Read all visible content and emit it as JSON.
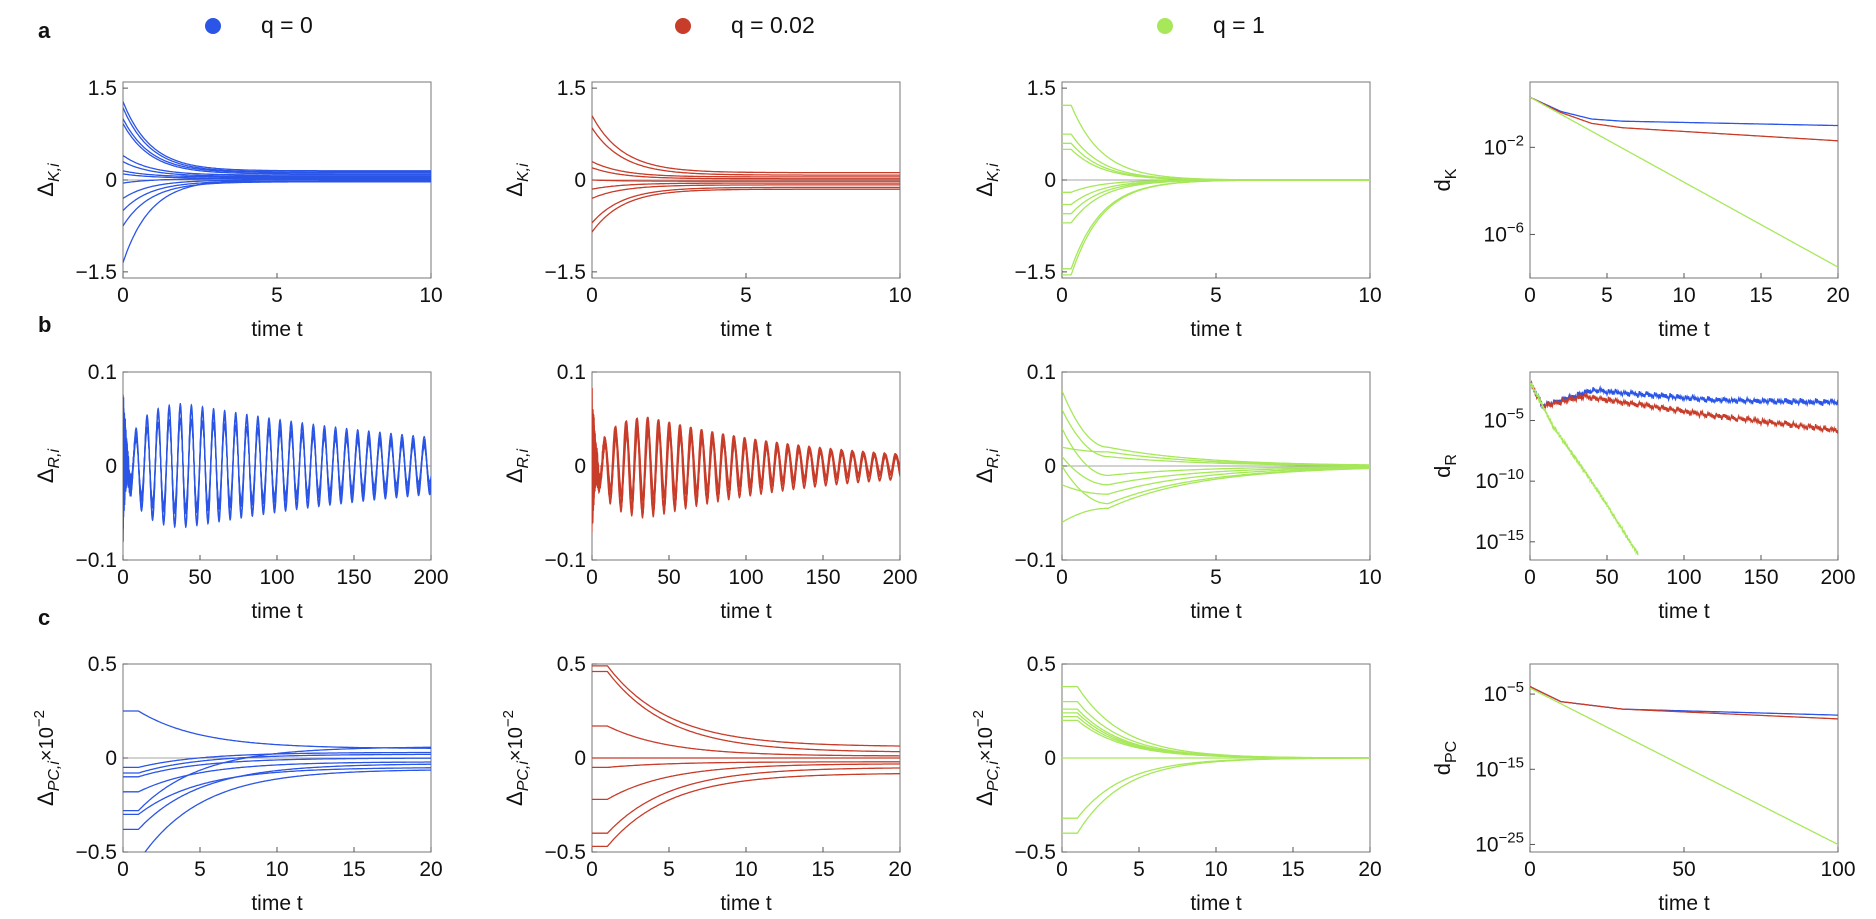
{
  "legend": [
    {
      "label": "q = 0",
      "color": "#2b55e6"
    },
    {
      "label": "q = 0.02",
      "color": "#c83c2a"
    },
    {
      "label": "q = 1",
      "color": "#a6e85a"
    }
  ],
  "row_labels": [
    "a",
    "b",
    "c"
  ],
  "chart_data": [
    {
      "id": "a1",
      "type": "line",
      "xlabel": "time t",
      "ylabel": "Δ",
      "ysub": "K,i",
      "xlim": [
        0,
        10
      ],
      "ylim": [
        -1.6,
        1.6
      ],
      "xticks": [
        0,
        5,
        10
      ],
      "yticks": [
        {
          "v": 1.5,
          "t": "1.5"
        },
        {
          "v": 0,
          "t": "0"
        },
        {
          "v": -1.5,
          "t": "−1.5"
        }
      ],
      "color": "#2b55e6",
      "series": [
        {
          "name": "q = 0",
          "mode": "exp",
          "initial": [
            1.28,
            1.18,
            1.0,
            0.92,
            0.4,
            0.3,
            0.15,
            0.1,
            -0.05,
            -0.3,
            -0.5,
            -0.75,
            -1.35
          ],
          "final": [
            0.15,
            0.13,
            0.12,
            0.1,
            0.08,
            0.06,
            0.05,
            0.03,
            0.02,
            0.0,
            -0.02,
            -0.03,
            0.01
          ],
          "tau": 0.9,
          "delay": 0
        }
      ]
    },
    {
      "id": "a2",
      "type": "line",
      "xlabel": "time t",
      "ylabel": "Δ",
      "ysub": "K,i",
      "xlim": [
        0,
        10
      ],
      "ylim": [
        -1.6,
        1.6
      ],
      "xticks": [
        0,
        5,
        10
      ],
      "yticks": [
        {
          "v": 1.5,
          "t": "1.5"
        },
        {
          "v": 0,
          "t": "0"
        },
        {
          "v": -1.5,
          "t": "−1.5"
        }
      ],
      "color": "#c83c2a",
      "series": [
        {
          "name": "q = 0.02",
          "mode": "exp",
          "initial": [
            1.05,
            0.85,
            0.3,
            0.2,
            0.0,
            -0.15,
            -0.3,
            -0.7,
            -0.85
          ],
          "final": [
            0.12,
            0.08,
            0.05,
            0.02,
            -0.02,
            -0.05,
            -0.08,
            -0.12,
            -0.15
          ],
          "tau": 1.0,
          "delay": 0
        }
      ]
    },
    {
      "id": "a3",
      "type": "line",
      "xlabel": "time t",
      "ylabel": "Δ",
      "ysub": "K,i",
      "xlim": [
        0,
        10
      ],
      "ylim": [
        -1.6,
        1.6
      ],
      "xticks": [
        0,
        5,
        10
      ],
      "yticks": [
        {
          "v": 1.5,
          "t": "1.5"
        },
        {
          "v": 0,
          "t": "0"
        },
        {
          "v": -1.5,
          "t": "−1.5"
        }
      ],
      "color": "#a6e85a",
      "series": [
        {
          "name": "q = 1",
          "mode": "exp",
          "initial": [
            1.22,
            0.75,
            0.6,
            0.5,
            -0.4,
            -0.55,
            -0.7,
            -1.45,
            -1.55,
            -0.2
          ],
          "final": [
            0,
            0,
            0,
            0,
            0,
            0,
            0,
            0,
            0,
            0
          ],
          "tau": 1.0,
          "delay": 0.3
        }
      ]
    },
    {
      "id": "a4",
      "type": "line",
      "log": true,
      "xlabel": "time t",
      "ylabel": "d",
      "ysub": "K",
      "xlim": [
        0,
        20
      ],
      "ylim": [
        -8,
        1
      ],
      "xticks": [
        0,
        5,
        10,
        15,
        20
      ],
      "yticks": [
        {
          "v": -2,
          "t": "10",
          "sup": "−2"
        },
        {
          "v": -6,
          "t": "10",
          "sup": "−6"
        }
      ],
      "series": [
        {
          "name": "q = 0",
          "color": "#2b55e6",
          "points": [
            [
              0,
              0.3
            ],
            [
              2,
              -0.35
            ],
            [
              4,
              -0.7
            ],
            [
              6,
              -0.8
            ],
            [
              20,
              -1.0
            ]
          ]
        },
        {
          "name": "q = 0.02",
          "color": "#c83c2a",
          "points": [
            [
              0,
              0.3
            ],
            [
              2,
              -0.4
            ],
            [
              4,
              -0.9
            ],
            [
              6,
              -1.1
            ],
            [
              20,
              -1.7
            ]
          ]
        },
        {
          "name": "q = 1",
          "color": "#a6e85a",
          "points": [
            [
              0,
              0.3
            ],
            [
              20,
              -7.5
            ]
          ]
        }
      ]
    },
    {
      "id": "b1",
      "type": "line",
      "xlabel": "time t",
      "ylabel": "Δ",
      "ysub": "R,i",
      "xlim": [
        0,
        200
      ],
      "ylim": [
        -0.1,
        0.1
      ],
      "xticks": [
        0,
        50,
        100,
        150,
        200
      ],
      "yticks": [
        {
          "v": 0.1,
          "t": "0.1"
        },
        {
          "v": 0,
          "t": "0"
        },
        {
          "v": -0.1,
          "t": "−0.1"
        }
      ],
      "color": "#2b55e6",
      "series": [
        {
          "name": "q = 0",
          "mode": "osc",
          "amp": 0.062,
          "period": 7.2,
          "peak": 38,
          "decay": 190,
          "rise": 10,
          "count": 8,
          "spread": 0.008
        }
      ]
    },
    {
      "id": "b2",
      "type": "line",
      "xlabel": "time t",
      "ylabel": "Δ",
      "ysub": "R,i",
      "xlim": [
        0,
        200
      ],
      "ylim": [
        -0.1,
        0.1
      ],
      "xticks": [
        0,
        50,
        100,
        150,
        200
      ],
      "yticks": [
        {
          "v": 0.1,
          "t": "0.1"
        },
        {
          "v": 0,
          "t": "0"
        },
        {
          "v": -0.1,
          "t": "−0.1"
        }
      ],
      "color": "#c83c2a",
      "series": [
        {
          "name": "q = 0.02",
          "mode": "osc",
          "amp": 0.045,
          "period": 7.0,
          "peak": 35,
          "decay": 110,
          "rise": 10,
          "count": 8,
          "spread": 0.006
        }
      ]
    },
    {
      "id": "b3",
      "type": "line",
      "xlabel": "time t",
      "ylabel": "Δ",
      "ysub": "R,i",
      "xlim": [
        0,
        10
      ],
      "ylim": [
        -0.1,
        0.1
      ],
      "xticks": [
        0,
        5,
        10
      ],
      "yticks": [
        {
          "v": 0.1,
          "t": "0.1"
        },
        {
          "v": 0,
          "t": "0"
        },
        {
          "v": -0.1,
          "t": "−0.1"
        }
      ],
      "color": "#a6e85a",
      "series": [
        {
          "name": "q = 1",
          "mode": "hump",
          "initial": [
            0.08,
            0.06,
            0.04,
            -0.06,
            0.0,
            0.02,
            -0.02,
            0.01
          ],
          "mid": [
            0.02,
            0.01,
            -0.01,
            -0.045,
            -0.04,
            0.015,
            -0.03,
            -0.02
          ],
          "tpeak": 1.5,
          "tau": 3.0
        }
      ]
    },
    {
      "id": "b4",
      "type": "line",
      "log": true,
      "xlabel": "time t",
      "ylabel": "d",
      "ysub": "R",
      "xlim": [
        0,
        200
      ],
      "ylim": [
        -16.5,
        -1
      ],
      "xticks": [
        0,
        50,
        100,
        150,
        200
      ],
      "yticks": [
        {
          "v": -5,
          "t": "10",
          "sup": "−5"
        },
        {
          "v": -10,
          "t": "10",
          "sup": "−10"
        },
        {
          "v": -15,
          "t": "10",
          "sup": "−15"
        }
      ],
      "series": [
        {
          "name": "q = 0",
          "color": "#2b55e6",
          "points": [
            [
              0,
              -1.8
            ],
            [
              8,
              -3.8
            ],
            [
              40,
              -2.5
            ],
            [
              120,
              -3.3
            ],
            [
              200,
              -3.5
            ]
          ],
          "ripple": 0.5
        },
        {
          "name": "q = 0.02",
          "color": "#c83c2a",
          "points": [
            [
              0,
              -1.8
            ],
            [
              8,
              -3.8
            ],
            [
              35,
              -3.0
            ],
            [
              120,
              -4.6
            ],
            [
              200,
              -5.8
            ]
          ],
          "ripple": 0.5
        },
        {
          "name": "q = 1",
          "color": "#a6e85a",
          "points": [
            [
              0,
              -1.8
            ],
            [
              15,
              -5.5
            ],
            [
              40,
              -10
            ],
            [
              70,
              -16.0
            ]
          ],
          "ripple": 0.25
        }
      ]
    },
    {
      "id": "c1",
      "type": "line",
      "xlabel": "time t",
      "ylabel": "Δ",
      "ysub": "PC,i",
      "ysuffix": "×10",
      "ysup": "−2",
      "xlim": [
        0,
        20
      ],
      "ylim": [
        -0.5,
        0.5
      ],
      "xticks": [
        0,
        5,
        10,
        15,
        20
      ],
      "yticks": [
        {
          "v": 0.5,
          "t": "0.5"
        },
        {
          "v": 0,
          "t": "0"
        },
        {
          "v": -0.5,
          "t": "−0.5"
        }
      ],
      "color": "#2b55e6",
      "series": [
        {
          "name": "q = 0",
          "mode": "exp",
          "initial": [
            0.25,
            -0.05,
            -0.08,
            -0.1,
            -0.18,
            -0.28,
            -0.3,
            -0.38,
            -0.55
          ],
          "final": [
            0.05,
            0.03,
            0.02,
            0.0,
            -0.02,
            0.06,
            -0.05,
            -0.03,
            -0.06
          ],
          "tau": 4.0,
          "delay": 1.0
        }
      ]
    },
    {
      "id": "c2",
      "type": "line",
      "xlabel": "time t",
      "ylabel": "Δ",
      "ysub": "PC,i",
      "ysuffix": "×10",
      "ysup": "−2",
      "xlim": [
        0,
        20
      ],
      "ylim": [
        -0.5,
        0.5
      ],
      "xticks": [
        0,
        5,
        10,
        15,
        20
      ],
      "yticks": [
        {
          "v": 0.5,
          "t": "0.5"
        },
        {
          "v": 0,
          "t": "0"
        },
        {
          "v": -0.5,
          "t": "−0.5"
        }
      ],
      "color": "#c83c2a",
      "series": [
        {
          "name": "q = 0.02",
          "mode": "exp",
          "initial": [
            0.49,
            0.46,
            0.17,
            0.0,
            -0.05,
            -0.22,
            -0.4,
            -0.47
          ],
          "final": [
            0.06,
            0.03,
            0.01,
            0.0,
            -0.02,
            -0.03,
            -0.05,
            -0.08
          ],
          "tau": 4.0,
          "delay": 1.0
        }
      ]
    },
    {
      "id": "c3",
      "type": "line",
      "xlabel": "time t",
      "ylabel": "Δ",
      "ysub": "PC,i",
      "ysuffix": "×10",
      "ysup": "−2",
      "xlim": [
        0,
        20
      ],
      "ylim": [
        -0.5,
        0.5
      ],
      "xticks": [
        0,
        5,
        10,
        15,
        20
      ],
      "yticks": [
        {
          "v": 0.5,
          "t": "0.5"
        },
        {
          "v": 0,
          "t": "0"
        },
        {
          "v": -0.5,
          "t": "−0.5"
        }
      ],
      "color": "#a6e85a",
      "series": [
        {
          "name": "q = 1",
          "mode": "exp",
          "initial": [
            0.38,
            0.3,
            0.26,
            0.24,
            0.22,
            0.2,
            0.0,
            -0.32,
            -0.4
          ],
          "final": [
            0,
            0,
            0,
            0,
            0,
            0,
            0,
            0,
            0
          ],
          "tau": 3.0,
          "delay": 1.0
        }
      ]
    },
    {
      "id": "c4",
      "type": "line",
      "log": true,
      "xlabel": "time t",
      "ylabel": "d",
      "ysub": "PC",
      "xlim": [
        0,
        100
      ],
      "ylim": [
        -26,
        -1
      ],
      "xticks": [
        0,
        50,
        100
      ],
      "yticks": [
        {
          "v": -5,
          "t": "10",
          "sup": "−5"
        },
        {
          "v": -15,
          "t": "10",
          "sup": "−15"
        },
        {
          "v": -25,
          "t": "10",
          "sup": "−25"
        }
      ],
      "series": [
        {
          "name": "q = 0",
          "color": "#2b55e6",
          "points": [
            [
              0,
              -4.0
            ],
            [
              10,
              -6.0
            ],
            [
              30,
              -7.0
            ],
            [
              100,
              -7.8
            ]
          ]
        },
        {
          "name": "q = 0.02",
          "color": "#c83c2a",
          "points": [
            [
              0,
              -4.0
            ],
            [
              10,
              -6.0
            ],
            [
              30,
              -7.0
            ],
            [
              100,
              -8.3
            ]
          ]
        },
        {
          "name": "q = 1",
          "color": "#a6e85a",
          "points": [
            [
              0,
              -4.2
            ],
            [
              100,
              -25.0
            ]
          ]
        }
      ]
    }
  ]
}
